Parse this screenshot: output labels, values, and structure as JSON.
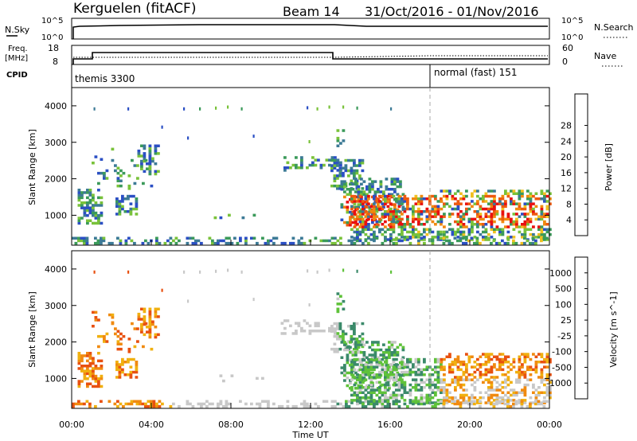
{
  "header": {
    "station": "Kerguelen (fitACF)",
    "beam": "Beam 14",
    "date_range": "31/Oct/2016 - 01/Nov/2016"
  },
  "nsky_panel": {
    "left_label": "N.Sky",
    "right_label": "N.Search",
    "left_ticks": [
      "10^5",
      "10^0"
    ],
    "right_ticks": [
      "10^5",
      "10^0"
    ]
  },
  "freq_panel": {
    "left_label_1": "Freq.",
    "left_label_2": "[MHz]",
    "right_label": "Nave",
    "left_ticks": [
      "18",
      "8"
    ],
    "right_ticks": [
      "60",
      "0"
    ]
  },
  "cpid_panel": {
    "label": "CPID",
    "modes": [
      {
        "name": "themis 3300",
        "start_hour": 0
      },
      {
        "name": "normal (fast) 151",
        "start_hour": 18
      }
    ]
  },
  "chart_data": [
    {
      "type": "heatmap",
      "name": "power",
      "ylabel": "Slant Range [km]",
      "xlabel": "",
      "ylim": [
        180,
        4500
      ],
      "xlim_hours": [
        0,
        24
      ],
      "yticks": [
        "1000",
        "2000",
        "3000",
        "4000"
      ],
      "colorbar": {
        "label": "Power [dB]",
        "ticks": [
          "4",
          "8",
          "12",
          "16",
          "20",
          "24",
          "28"
        ],
        "colors": [
          "#1a1aff",
          "#2b4fc4",
          "#3c7a96",
          "#3b9a5a",
          "#79c23a",
          "#f0c020",
          "#f08a10",
          "#ee5a10",
          "#e81010"
        ]
      }
    },
    {
      "type": "heatmap",
      "name": "velocity",
      "ylabel": "Slant Range [km]",
      "xlabel": "Time UT",
      "ylim": [
        180,
        4500
      ],
      "xlim_hours": [
        0,
        24
      ],
      "yticks": [
        "1000",
        "2000",
        "3000",
        "4000"
      ],
      "xticks": [
        "00:00",
        "04:00",
        "08:00",
        "12:00",
        "16:00",
        "20:00",
        "00:00"
      ],
      "colorbar": {
        "label": "Velocity [m s^-1]",
        "ticks": [
          "1000",
          "500",
          "100",
          "25",
          "-25",
          "-100",
          "-500",
          "-1000"
        ],
        "colors": [
          "#1a3fd6",
          "#2c62b0",
          "#3b8a6a",
          "#5fc23a",
          "#c8c8c8",
          "#f0b010",
          "#f08a10",
          "#e85010",
          "#e81010"
        ]
      }
    }
  ]
}
